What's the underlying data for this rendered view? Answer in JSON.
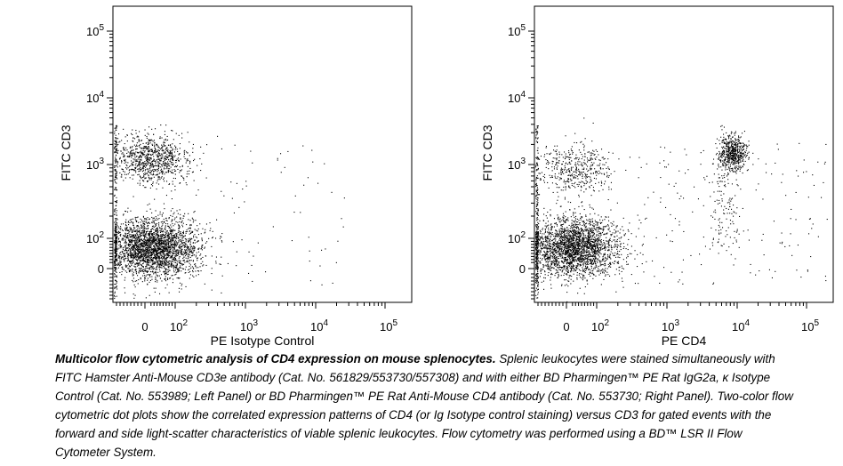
{
  "chart_data": [
    {
      "type": "scatter",
      "panel": "left",
      "xlabel": "PE Isotype Control",
      "ylabel": "FITC CD3",
      "x_scale": "biexponential",
      "y_scale": "biexponential",
      "xlim": [
        -30,
        100000
      ],
      "ylim": [
        -30,
        100000
      ],
      "x_ticks": [
        "0",
        "10^2",
        "10^3",
        "10^4",
        "10^5"
      ],
      "y_ticks": [
        "0",
        "10^2",
        "10^3",
        "10^4",
        "10^5"
      ],
      "populations": [
        {
          "name": "",
          "center_x": 30,
          "center_y": 70,
          "points": 2700
        },
        {
          "name": "",
          "center_x": 20,
          "center_y": 1200,
          "points": 900
        }
      ]
    },
    {
      "type": "scatter",
      "panel": "right",
      "xlabel": "PE CD4",
      "ylabel": "FITC CD3",
      "x_scale": "biexponential",
      "y_scale": "biexponential",
      "xlim": [
        -30,
        100000
      ],
      "ylim": [
        -30,
        100000
      ],
      "x_ticks": [
        "0",
        "10^2",
        "10^3",
        "10^4",
        "10^5"
      ],
      "y_ticks": [
        "0",
        "10^2",
        "10^3",
        "10^4",
        "10^5"
      ],
      "populations": [
        {
          "name": "",
          "center_x": 25,
          "center_y": 70,
          "points": 2500
        },
        {
          "name": "",
          "center_x": 30,
          "center_y": 900,
          "points": 450
        },
        {
          "name": "",
          "center_x": 8500,
          "center_y": 1500,
          "points": 700
        }
      ]
    }
  ],
  "caption": {
    "bold": "Multicolor flow cytometric analysis of CD4 expression on mouse splenocytes.",
    "text": " Splenic leukocytes were stained simultaneously with FITC Hamster Anti-Mouse CD3e antibody (Cat. No. 561829/553730/557308) and with either BD Pharmingen™ PE Rat IgG2a, κ Isotype Control (Cat. No. 553989; Left Panel) or BD Pharmingen™ PE Rat Anti-Mouse CD4 antibody (Cat. No. 553730; Right Panel). Two-color flow cytometric dot plots show the correlated expression patterns of CD4 (or Ig Isotype control staining) versus CD3 for gated events with the forward and side light-scatter characteristics of viable splenic leukocytes. Flow cytometry was performed using a BD™ LSR II Flow Cytometer System."
  }
}
